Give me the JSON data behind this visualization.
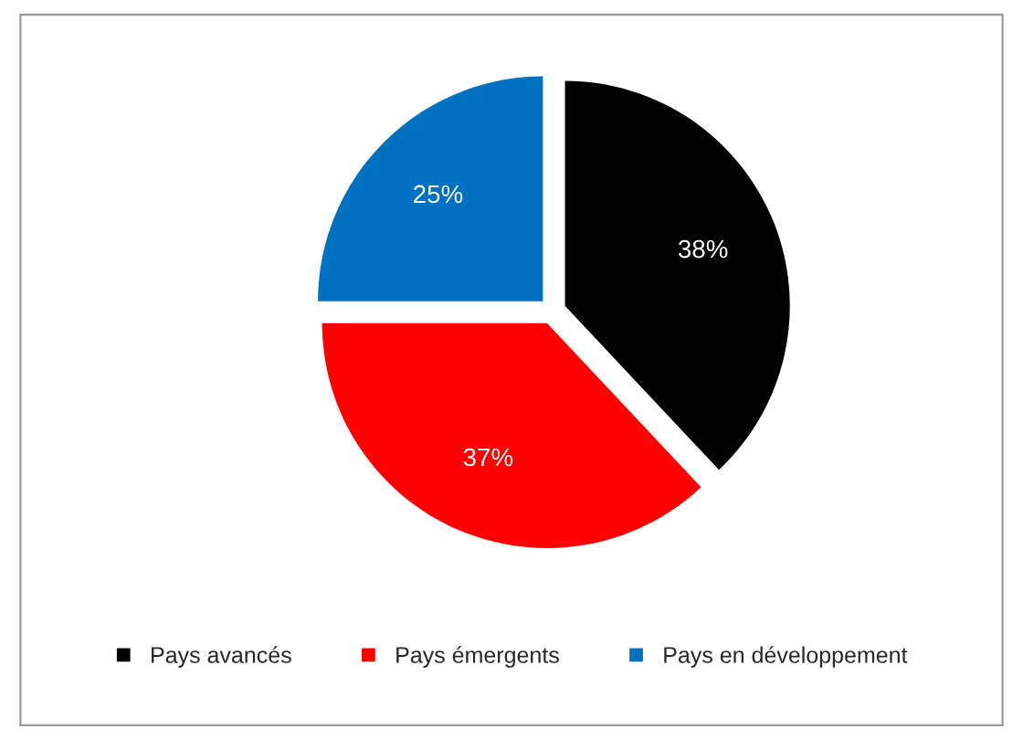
{
  "chart_data": {
    "type": "pie",
    "categories": [
      "Pays avancés",
      "Pays émergents",
      "Pays en développement"
    ],
    "values": [
      38,
      37,
      25
    ],
    "colors": [
      "#000000",
      "#ff0000",
      "#0070c0"
    ],
    "value_labels": [
      "38%",
      "37%",
      "25%"
    ],
    "legend": "bottom"
  }
}
